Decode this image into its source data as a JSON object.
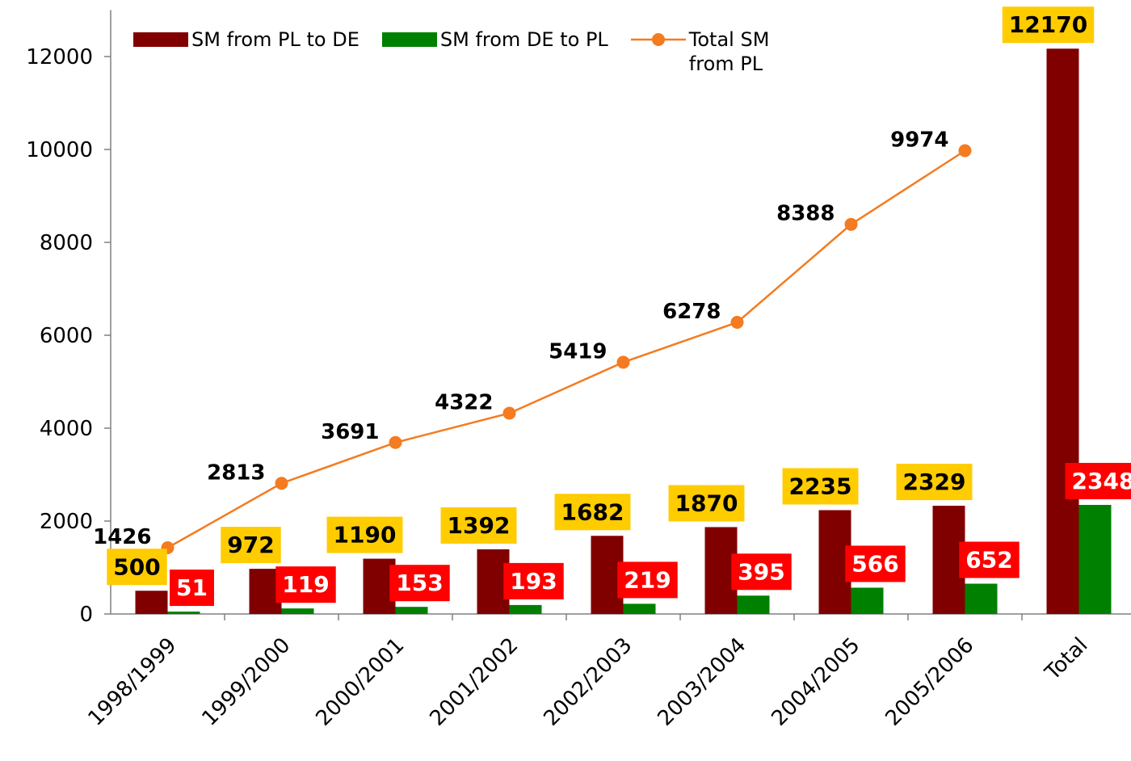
{
  "chart_data": {
    "type": "bar_line",
    "categories": [
      "1998/1999",
      "1999/2000",
      "2000/2001",
      "2001/2002",
      "2002/2003",
      "2003/2004",
      "2004/2005",
      "2005/2006",
      "Total"
    ],
    "series": [
      {
        "name": "SM from PL to DE",
        "type": "bar",
        "color": "#800000",
        "values": [
          500,
          972,
          1190,
          1392,
          1682,
          1870,
          2235,
          2329,
          12170
        ]
      },
      {
        "name": "SM from DE to PL",
        "type": "bar",
        "color": "#008000",
        "values": [
          51,
          119,
          153,
          193,
          219,
          395,
          566,
          652,
          2348
        ]
      },
      {
        "name": "Total SM from PL",
        "type": "line",
        "color": "#f47b20",
        "values": [
          1426,
          2813,
          3691,
          4322,
          5419,
          6278,
          8388,
          9974,
          null
        ]
      }
    ],
    "ylim": [
      0,
      13000
    ],
    "yticks": [
      0,
      2000,
      4000,
      6000,
      8000,
      10000,
      12000
    ],
    "legend": "top"
  }
}
